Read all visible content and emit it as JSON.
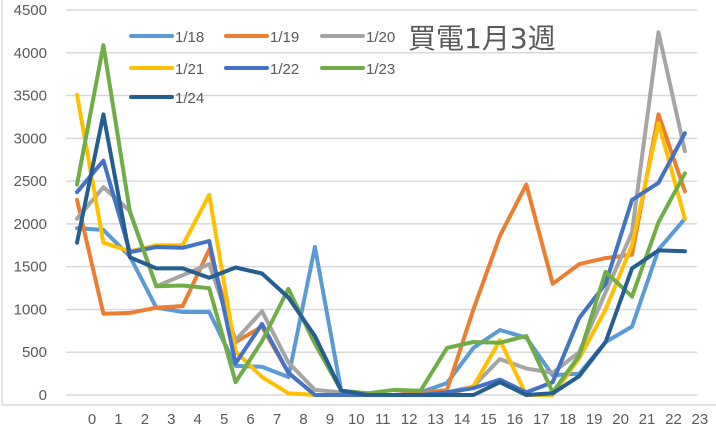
{
  "chart_data": {
    "type": "line",
    "title": "買電1月3週",
    "xlabel": "",
    "ylabel": "",
    "x": [
      0,
      1,
      2,
      3,
      4,
      5,
      6,
      7,
      8,
      9,
      10,
      11,
      12,
      13,
      14,
      15,
      16,
      17,
      18,
      19,
      20,
      21,
      22,
      23
    ],
    "x_tick_labels": [
      "0",
      "1",
      "2",
      "3",
      "4",
      "5",
      "6",
      "7",
      "8",
      "9",
      "10",
      "11",
      "12",
      "13",
      "14",
      "15",
      "16",
      "17",
      "18",
      "19",
      "20",
      "21",
      "22",
      "23"
    ],
    "y_ticks": [
      0,
      500,
      1000,
      1500,
      2000,
      2500,
      3000,
      3500,
      4000,
      4500
    ],
    "ylim": [
      0,
      4500
    ],
    "grid": true,
    "legend_position": "top-left-inside",
    "series": [
      {
        "name": "1/18",
        "color": "#5B9BD5",
        "values": [
          1950,
          1930,
          1620,
          1020,
          970,
          970,
          340,
          330,
          210,
          1730,
          40,
          0,
          0,
          30,
          140,
          550,
          760,
          670,
          230,
          250,
          620,
          800,
          1700,
          2060
        ]
      },
      {
        "name": "1/19",
        "color": "#ED7D31",
        "values": [
          2280,
          950,
          960,
          1020,
          1040,
          1700,
          620,
          800,
          260,
          0,
          0,
          0,
          0,
          20,
          60,
          1000,
          1860,
          2460,
          1300,
          1530,
          1600,
          1640,
          3280,
          2380
        ]
      },
      {
        "name": "1/20",
        "color": "#A5A5A5",
        "values": [
          2060,
          2430,
          2150,
          1270,
          1400,
          1530,
          640,
          980,
          380,
          60,
          30,
          0,
          0,
          0,
          30,
          100,
          420,
          310,
          260,
          500,
          1200,
          1900,
          4240,
          2850
        ]
      },
      {
        "name": "1/21",
        "color": "#FFC000",
        "values": [
          3510,
          1780,
          1680,
          1750,
          1750,
          2340,
          510,
          210,
          20,
          0,
          0,
          0,
          0,
          0,
          0,
          100,
          640,
          0,
          0,
          430,
          1000,
          1750,
          3180,
          2060
        ]
      },
      {
        "name": "1/22",
        "color": "#4472C4",
        "values": [
          2370,
          2740,
          1670,
          1730,
          1720,
          1800,
          370,
          830,
          260,
          0,
          0,
          0,
          0,
          0,
          30,
          80,
          180,
          30,
          150,
          900,
          1300,
          2280,
          2480,
          3060
        ]
      },
      {
        "name": "1/23",
        "color": "#70AD47",
        "values": [
          2460,
          4090,
          2140,
          1270,
          1280,
          1250,
          150,
          630,
          1240,
          600,
          50,
          20,
          60,
          50,
          550,
          620,
          610,
          690,
          30,
          460,
          1440,
          1150,
          2020,
          2590
        ]
      },
      {
        "name": "1/24",
        "color": "#255E91",
        "values": [
          1780,
          3280,
          1610,
          1480,
          1480,
          1370,
          1490,
          1420,
          1140,
          690,
          50,
          0,
          0,
          0,
          0,
          0,
          150,
          0,
          20,
          220,
          620,
          1480,
          1690,
          1680
        ]
      }
    ]
  }
}
